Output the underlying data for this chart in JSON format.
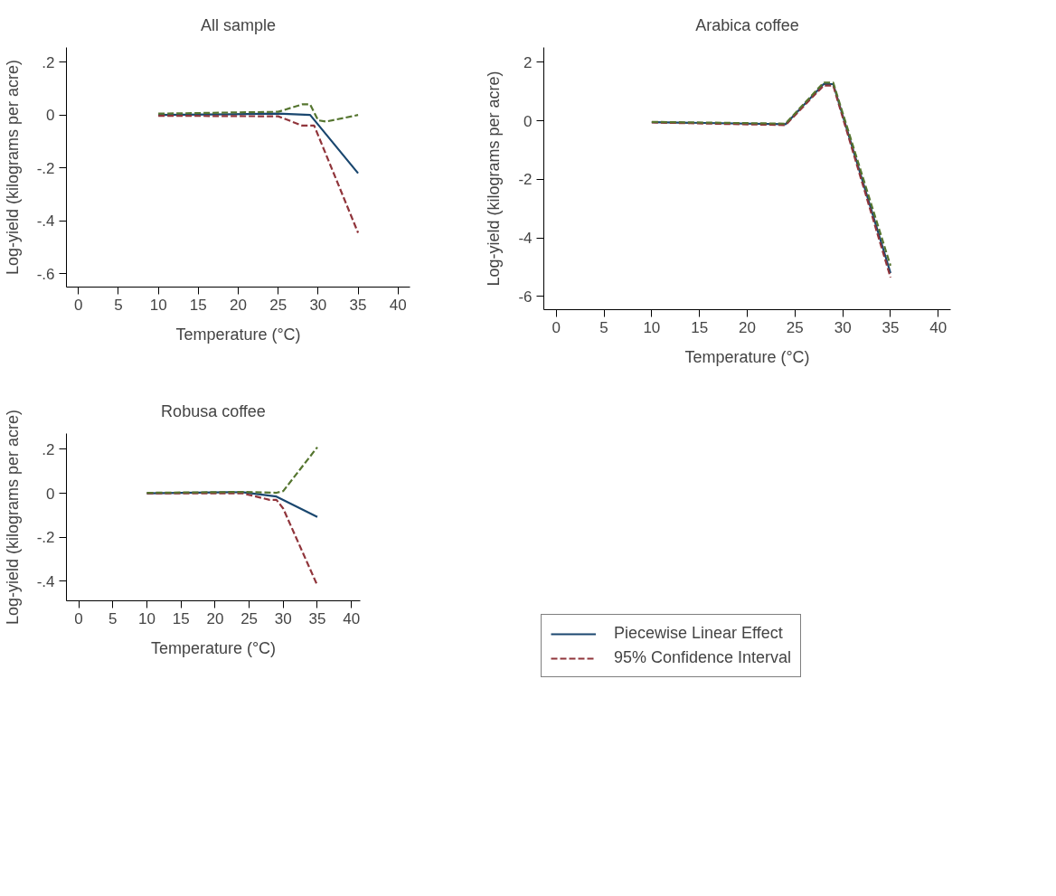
{
  "chart_data": [
    {
      "type": "line",
      "title": "All sample",
      "xlabel": "Temperature (°C)",
      "ylabel": "Log-yield (kilograms per acre)",
      "xlim": [
        -1.5,
        41.5
      ],
      "xticks": [
        0,
        5,
        10,
        15,
        20,
        25,
        30,
        35,
        40
      ],
      "ylim": [
        -0.65,
        0.255
      ],
      "yticks": [
        {
          "value": -0.6,
          "label": "-.6"
        },
        {
          "value": -0.4,
          "label": "-.4"
        },
        {
          "value": -0.2,
          "label": "-.2"
        },
        0,
        {
          "value": 0.2,
          "label": ".2"
        }
      ],
      "grid": false,
      "legend": false,
      "series": [
        {
          "color": "#1a476f",
          "line_style": "solid",
          "x": [
            10,
            25,
            29,
            35
          ],
          "values": [
            0,
            0.005,
            0,
            -0.22
          ]
        },
        {
          "color": "#90353b",
          "line_style": "dashed",
          "x": [
            10,
            25,
            28,
            29.5,
            35
          ],
          "values": [
            -0.003,
            -0.005,
            -0.04,
            -0.04,
            -0.445
          ]
        },
        {
          "color": "#55752f",
          "line_style": "dashed",
          "x": [
            10,
            25,
            28,
            29,
            30,
            31,
            35
          ],
          "values": [
            0.005,
            0.012,
            0.04,
            0.04,
            -0.02,
            -0.025,
            0
          ]
        }
      ]
    },
    {
      "type": "line",
      "title": "Arabica coffee",
      "xlabel": "Temperature (°C)",
      "ylabel": "Log-yield (kilograms per acre)",
      "xlim": [
        -1.3,
        41.3
      ],
      "xticks": [
        0,
        5,
        10,
        15,
        20,
        25,
        30,
        35,
        40
      ],
      "ylim": [
        -6.45,
        2.5
      ],
      "yticks": [
        -6,
        -4,
        -2,
        0,
        2
      ],
      "grid": false,
      "legend": false,
      "series": [
        {
          "color": "#1a476f",
          "line_style": "solid",
          "x": [
            10,
            24,
            28,
            29,
            35
          ],
          "values": [
            -0.05,
            -0.12,
            1.25,
            1.25,
            -5.2
          ]
        },
        {
          "color": "#90353b",
          "line_style": "dashed",
          "x": [
            10,
            24,
            28,
            29,
            35
          ],
          "values": [
            -0.06,
            -0.15,
            1.2,
            1.2,
            -5.35
          ]
        },
        {
          "color": "#55752f",
          "line_style": "dashed",
          "x": [
            10,
            24,
            28,
            29,
            35
          ],
          "values": [
            -0.04,
            -0.1,
            1.3,
            1.3,
            -4.95
          ]
        }
      ]
    },
    {
      "type": "line",
      "title": "Robusa coffee",
      "xlabel": "Temperature (°C)",
      "ylabel": "Log-yield (kilograms per acre)",
      "xlim": [
        -1.8,
        41.3
      ],
      "xticks": [
        0,
        5,
        10,
        15,
        20,
        25,
        30,
        35,
        40
      ],
      "ylim": [
        -0.49,
        0.272
      ],
      "yticks": [
        {
          "value": -0.4,
          "label": "-.4"
        },
        {
          "value": -0.2,
          "label": "-.2"
        },
        0,
        {
          "value": 0.2,
          "label": ".2"
        }
      ],
      "grid": false,
      "legend": "right",
      "series": [
        {
          "name": "Piecewise Linear Effect",
          "color": "#1a476f",
          "line_style": "solid",
          "x": [
            10,
            24,
            29,
            35
          ],
          "values": [
            0,
            0.005,
            -0.015,
            -0.108
          ]
        },
        {
          "name": "95% Confidence Interval",
          "color": "#90353b",
          "line_style": "dashed",
          "x": [
            10,
            24,
            28,
            29,
            30,
            35
          ],
          "values": [
            0,
            0,
            -0.03,
            -0.03,
            -0.07,
            -0.42
          ]
        },
        {
          "color": "#55752f",
          "line_style": "dashed",
          "x": [
            10,
            24,
            29,
            30,
            35
          ],
          "values": [
            0.002,
            0.006,
            0.002,
            0.01,
            0.21
          ]
        }
      ]
    }
  ]
}
